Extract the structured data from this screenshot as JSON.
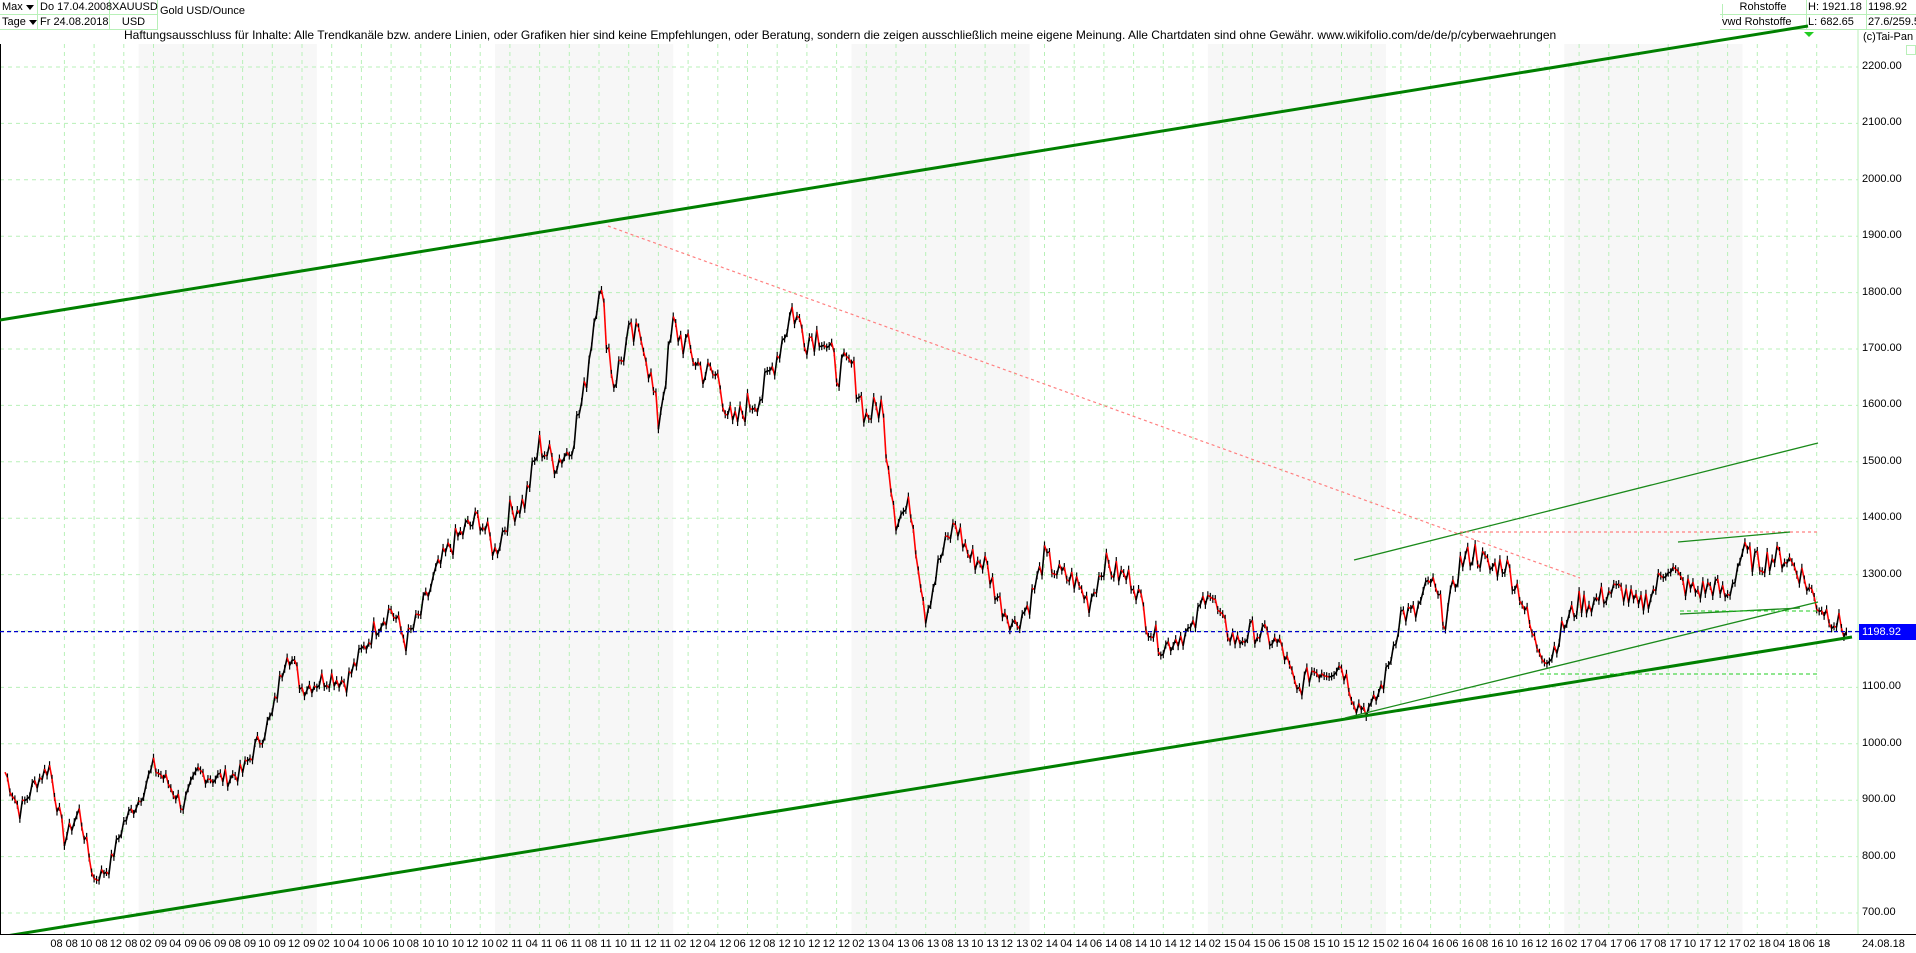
{
  "header": {
    "range_selector": "Max",
    "interval_selector": "Tage",
    "start_date": "Do 17.04.2008",
    "end_date": "Fr 24.08.2018",
    "symbol": "XAUUSD",
    "currency": "USD",
    "instrument_name": "Gold USD/Ounce",
    "category": "Rohstoffe",
    "source": "vwd Rohstoffe",
    "high": "H: 1921.18",
    "low": "L: 682.65",
    "last": "1198.92",
    "change": "27.6/259.5",
    "copyright": "(c)Tai-Pan"
  },
  "disclaimer": "Haftungsausschluss für Inhalte: Alle Trendkanäle bzw. andere Linien, oder Grafiken hier sind keine Empfehlungen, oder Beratung, sondern die zeigen ausschließlich meine eigene Meinung. Alle Chartdaten sind ohne Gewähr.  www.wikifolio.com/de/de/p/cyberwaehrungen",
  "colors": {
    "grid": "#b8f0b8",
    "trend_main": "#008000",
    "trend_thin": "#1a8a1a",
    "resistance": "#ff8080",
    "last_price_line": "#0000cc",
    "last_price_bg": "#0000ff",
    "bar_up": "#000000",
    "bar_down": "#ff0000",
    "band": "#f7f7f7"
  },
  "y_axis": {
    "labels": [
      "2200.00",
      "2100.00",
      "2000.00",
      "1900.00",
      "1800.00",
      "1700.00",
      "1600.00",
      "1500.00",
      "1400.00",
      "1300.00",
      "1200.00",
      "1100.00",
      "1000.00",
      "900.00",
      "800.00",
      "700.00"
    ],
    "last_price_label": "1198.92"
  },
  "x_axis": {
    "labels": [
      "08 08",
      "10 08",
      "12 08",
      "02 09",
      "04 09",
      "06 09",
      "08 09",
      "10 09",
      "12 09",
      "02 10",
      "04 10",
      "06 10",
      "08 10",
      "10 10",
      "12 10",
      "02 11",
      "04 11",
      "06 11",
      "08 11",
      "10 11",
      "12 11",
      "02 12",
      "04 12",
      "06 12",
      "08 12",
      "10 12",
      "12 12",
      "02 13",
      "04 13",
      "06 13",
      "08 13",
      "10 13",
      "12 13",
      "02 14",
      "04 14",
      "06 14",
      "08 14",
      "10 14",
      "12 14",
      "02 15",
      "04 15",
      "06 15",
      "08 15",
      "10 15",
      "12 15",
      "02 16",
      "04 16",
      "06 16",
      "08 16",
      "10 16",
      "12 16",
      "02 17",
      "04 17",
      "06 17",
      "08 17",
      "10 17",
      "12 17",
      "02 18",
      "04 18",
      "06 18"
    ],
    "separator": "-",
    "end_label": "24.08.18"
  },
  "chart_data": {
    "type": "line",
    "title": "Gold USD/Ounce (XAUUSD)",
    "subtitle": "Tage, Max: Do 17.04.2008 – Fr 24.08.2018",
    "xlabel": "",
    "ylabel": "USD",
    "ylim": [
      680,
      2240
    ],
    "grid": true,
    "legend": "none",
    "x": [
      "2008-04",
      "2008-05",
      "2008-06",
      "2008-07",
      "2008-08",
      "2008-09",
      "2008-10",
      "2008-11",
      "2008-12",
      "2009-01",
      "2009-02",
      "2009-03",
      "2009-04",
      "2009-05",
      "2009-06",
      "2009-07",
      "2009-08",
      "2009-09",
      "2009-10",
      "2009-11",
      "2009-12",
      "2010-01",
      "2010-02",
      "2010-03",
      "2010-04",
      "2010-05",
      "2010-06",
      "2010-07",
      "2010-08",
      "2010-09",
      "2010-10",
      "2010-11",
      "2010-12",
      "2011-01",
      "2011-02",
      "2011-03",
      "2011-04",
      "2011-05",
      "2011-06",
      "2011-07",
      "2011-08",
      "2011-09",
      "2011-10",
      "2011-11",
      "2011-12",
      "2012-01",
      "2012-02",
      "2012-03",
      "2012-04",
      "2012-05",
      "2012-06",
      "2012-07",
      "2012-08",
      "2012-09",
      "2012-10",
      "2012-11",
      "2012-12",
      "2013-01",
      "2013-02",
      "2013-03",
      "2013-04",
      "2013-05",
      "2013-06",
      "2013-07",
      "2013-08",
      "2013-09",
      "2013-10",
      "2013-11",
      "2013-12",
      "2014-01",
      "2014-02",
      "2014-03",
      "2014-04",
      "2014-05",
      "2014-06",
      "2014-07",
      "2014-08",
      "2014-09",
      "2014-10",
      "2014-11",
      "2014-12",
      "2015-01",
      "2015-02",
      "2015-03",
      "2015-04",
      "2015-05",
      "2015-06",
      "2015-07",
      "2015-08",
      "2015-09",
      "2015-10",
      "2015-11",
      "2015-12",
      "2016-01",
      "2016-02",
      "2016-03",
      "2016-04",
      "2016-05",
      "2016-06",
      "2016-07",
      "2016-08",
      "2016-09",
      "2016-10",
      "2016-11",
      "2016-12",
      "2017-01",
      "2017-02",
      "2017-03",
      "2017-04",
      "2017-05",
      "2017-06",
      "2017-07",
      "2017-08",
      "2017-09",
      "2017-10",
      "2017-11",
      "2017-12",
      "2018-01",
      "2018-02",
      "2018-03",
      "2018-04",
      "2018-05",
      "2018-06",
      "2018-07",
      "2018-08"
    ],
    "series": [
      {
        "name": "Gold USD/Ounce",
        "values": [
          950,
          880,
          930,
          960,
          830,
          880,
          760,
          780,
          860,
          900,
          960,
          930,
          890,
          950,
          940,
          940,
          950,
          1000,
          1050,
          1170,
          1100,
          1110,
          1120,
          1110,
          1160,
          1210,
          1240,
          1180,
          1230,
          1300,
          1350,
          1380,
          1400,
          1340,
          1410,
          1430,
          1530,
          1500,
          1520,
          1620,
          1820,
          1640,
          1720,
          1720,
          1570,
          1740,
          1700,
          1660,
          1650,
          1560,
          1600,
          1620,
          1690,
          1770,
          1720,
          1730,
          1660,
          1670,
          1580,
          1600,
          1400,
          1420,
          1230,
          1330,
          1390,
          1330,
          1320,
          1250,
          1210,
          1250,
          1330,
          1300,
          1290,
          1250,
          1320,
          1300,
          1290,
          1210,
          1170,
          1190,
          1200,
          1280,
          1210,
          1180,
          1200,
          1190,
          1170,
          1090,
          1130,
          1130,
          1140,
          1070,
          1060,
          1120,
          1230,
          1230,
          1290,
          1220,
          1320,
          1340,
          1310,
          1320,
          1270,
          1180,
          1150,
          1210,
          1250,
          1250,
          1270,
          1270,
          1240,
          1270,
          1320,
          1280,
          1270,
          1280,
          1260,
          1340,
          1320,
          1330,
          1330,
          1300,
          1250,
          1225,
          1198.92
        ]
      },
      {
        "name": "Upper channel (bold)",
        "values_at": {
          "2008-04": 1715,
          "2011-08": 1921,
          "2018-08": 2350
        }
      },
      {
        "name": "Lower channel (bold)",
        "values_at": {
          "2008-04": 690,
          "2008-10": 705,
          "2015-12": 1050,
          "2018-08": 1180
        }
      },
      {
        "name": "Resistance (dotted red)",
        "values_at": {
          "2011-08": 1921,
          "2012-10": 1795,
          "2016-07": 1375
        }
      },
      {
        "name": "Upper channel 2016 (thin)",
        "values_at": {
          "2015-12": 1325,
          "2016-07": 1375,
          "2018-08": 1535
        }
      },
      {
        "name": "Lower channel 2016 (thin)",
        "values_at": {
          "2015-12": 1050,
          "2016-12": 1125,
          "2018-08": 1250
        }
      },
      {
        "name": "Horizontal resistance (dotted red)",
        "value": 1375
      },
      {
        "name": "Horizontal support (dotted green)",
        "value": 1122
      }
    ],
    "annotations": [
      {
        "text": "H: 1921.18",
        "type": "high"
      },
      {
        "text": "L: 682.65",
        "type": "low"
      },
      {
        "text": "1198.92",
        "type": "last_price_line"
      }
    ]
  }
}
